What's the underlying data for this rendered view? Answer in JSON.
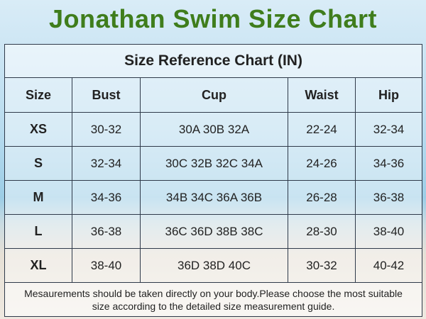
{
  "title": "Jonathan Swim Size Chart",
  "table": {
    "caption": "Size Reference Chart (IN)",
    "header": [
      "Size",
      "Bust",
      "Cup",
      "Waist",
      "Hip"
    ],
    "rows": [
      [
        "XS",
        "30-32",
        "30A 30B 32A",
        "22-24",
        "32-34"
      ],
      [
        "S",
        "32-34",
        "30C 32B 32C 34A",
        "24-26",
        "34-36"
      ],
      [
        "M",
        "34-36",
        "34B 34C 36A 36B",
        "26-28",
        "36-38"
      ],
      [
        "L",
        "36-38",
        "36C 36D 38B 38C",
        "28-30",
        "38-40"
      ],
      [
        "XL",
        "38-40",
        "36D 38D 40C",
        "30-32",
        "40-42"
      ]
    ],
    "note": "Mesaurements should be taken directly on your body.Please choose the most suitable size according to the detailed size measurement guide."
  }
}
